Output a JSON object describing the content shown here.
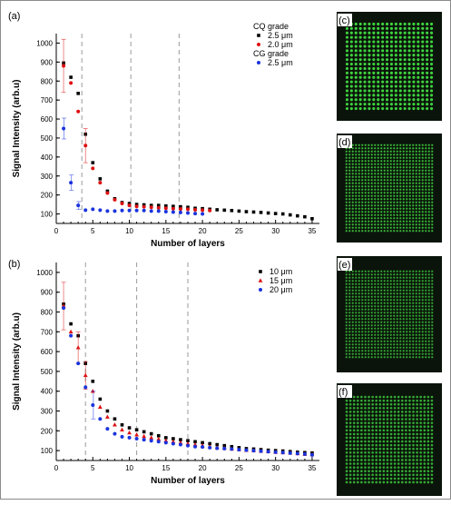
{
  "chart_data": [
    {
      "type": "scatter",
      "panel_label": "(a)",
      "xlabel": "Number of layers",
      "ylabel": "Signal Intensity (arb.u)",
      "xlim": [
        0,
        36
      ],
      "ylim": [
        50,
        1050
      ],
      "xticks": [
        0,
        5,
        10,
        15,
        20,
        25,
        30,
        35
      ],
      "yticks": [
        100,
        200,
        300,
        400,
        500,
        600,
        700,
        800,
        900,
        1000
      ],
      "vlines": [
        3.5,
        10.2,
        16.8
      ],
      "legend_groups": [
        {
          "header": "CQ grade",
          "series": [
            0,
            1
          ]
        },
        {
          "header": "CG grade",
          "series": [
            2
          ]
        }
      ],
      "legend_position": "top-right",
      "series": [
        {
          "name": "2.5 μm",
          "color": "#000000",
          "marker": "square",
          "x": [
            1,
            2,
            3,
            4,
            5,
            6,
            7,
            8,
            9,
            10,
            11,
            12,
            13,
            14,
            15,
            16,
            17,
            18,
            19,
            20,
            21,
            22,
            23,
            24,
            25,
            26,
            27,
            28,
            29,
            30,
            31,
            32,
            33,
            34,
            35
          ],
          "y": [
            895,
            820,
            735,
            520,
            370,
            285,
            220,
            180,
            160,
            155,
            150,
            148,
            145,
            145,
            142,
            140,
            138,
            135,
            130,
            128,
            125,
            122,
            120,
            118,
            115,
            112,
            110,
            108,
            105,
            102,
            100,
            95,
            90,
            85,
            75
          ]
        },
        {
          "name": "2.0 μm",
          "color": "#dd1111",
          "marker": "circle",
          "x": [
            1,
            2,
            3,
            4,
            5,
            6,
            7,
            8,
            9,
            10,
            11,
            12,
            13,
            14,
            15,
            16,
            17,
            18,
            19,
            20,
            21
          ],
          "y": [
            880,
            790,
            640,
            460,
            340,
            265,
            210,
            175,
            155,
            145,
            140,
            138,
            135,
            132,
            130,
            128,
            126,
            125,
            122,
            120,
            118
          ],
          "err": [
            140,
            0,
            0,
            90,
            0,
            0,
            0,
            0,
            0,
            0,
            0,
            0,
            0,
            0,
            0,
            0,
            0,
            0,
            0,
            0,
            0
          ]
        },
        {
          "name": "2.5 μm",
          "color": "#1a33dd",
          "marker": "circle",
          "x": [
            1,
            2,
            3,
            4,
            5,
            6,
            7,
            8,
            9,
            10,
            11,
            12,
            13,
            14,
            15,
            16,
            17,
            18,
            19,
            20
          ],
          "y": [
            550,
            265,
            145,
            120,
            125,
            120,
            115,
            115,
            118,
            118,
            118,
            118,
            115,
            115,
            112,
            110,
            108,
            105,
            102,
            100
          ],
          "err": [
            55,
            40,
            20,
            0,
            0,
            0,
            0,
            0,
            0,
            0,
            0,
            0,
            0,
            0,
            0,
            0,
            0,
            0,
            0,
            0
          ]
        }
      ]
    },
    {
      "type": "scatter",
      "panel_label": "(b)",
      "xlabel": "Number of layers",
      "ylabel": "Signal Intensity (arb.u)",
      "xlim": [
        0,
        36
      ],
      "ylim": [
        50,
        1050
      ],
      "xticks": [
        0,
        5,
        10,
        15,
        20,
        25,
        30,
        35
      ],
      "yticks": [
        100,
        200,
        300,
        400,
        500,
        600,
        700,
        800,
        900,
        1000
      ],
      "vlines": [
        4,
        11,
        18
      ],
      "legend_groups": [
        {
          "header": "",
          "series": [
            0,
            1,
            2
          ]
        }
      ],
      "legend_position": "top-right",
      "series": [
        {
          "name": "10 μm",
          "color": "#000000",
          "marker": "square",
          "x": [
            1,
            2,
            3,
            4,
            5,
            6,
            7,
            8,
            9,
            10,
            11,
            12,
            13,
            14,
            15,
            16,
            17,
            18,
            19,
            20,
            21,
            22,
            23,
            24,
            25,
            26,
            27,
            28,
            29,
            30,
            31,
            32,
            33,
            34,
            35
          ],
          "y": [
            840,
            740,
            680,
            540,
            450,
            360,
            300,
            260,
            230,
            215,
            205,
            195,
            185,
            175,
            165,
            160,
            155,
            150,
            145,
            140,
            135,
            130,
            125,
            120,
            115,
            110,
            108,
            105,
            102,
            100,
            98,
            95,
            92,
            90,
            88
          ]
        },
        {
          "name": "15 μm",
          "color": "#dd1111",
          "marker": "triangle",
          "x": [
            1,
            2,
            3,
            4,
            5,
            6,
            7,
            8,
            9,
            10,
            11,
            12,
            13,
            14,
            15,
            16,
            17,
            18,
            19,
            20,
            21,
            22,
            23,
            24,
            25,
            26,
            27,
            28,
            29,
            30,
            31,
            32,
            33,
            34,
            35
          ],
          "y": [
            830,
            700,
            620,
            480,
            400,
            320,
            270,
            230,
            205,
            190,
            180,
            172,
            165,
            158,
            150,
            145,
            140,
            135,
            130,
            125,
            120,
            115,
            112,
            108,
            105,
            102,
            100,
            97,
            95,
            92,
            90,
            88,
            85,
            82,
            80
          ],
          "err": [
            120,
            0,
            80,
            70,
            0,
            0,
            0,
            0,
            0,
            0,
            0,
            0,
            0,
            0,
            0,
            0,
            0,
            0,
            0,
            0,
            0,
            0,
            0,
            0,
            0,
            0,
            0,
            0,
            0,
            0,
            0,
            0,
            0,
            0,
            0
          ]
        },
        {
          "name": "20 μm",
          "color": "#1a33dd",
          "marker": "circle",
          "x": [
            1,
            2,
            3,
            4,
            5,
            6,
            7,
            8,
            9,
            10,
            11,
            12,
            13,
            14,
            15,
            16,
            17,
            18,
            19,
            20,
            21,
            22,
            23,
            24,
            25,
            26,
            27,
            28,
            29,
            30,
            31,
            32,
            33,
            34,
            35
          ],
          "y": [
            820,
            680,
            540,
            420,
            330,
            260,
            210,
            185,
            170,
            165,
            160,
            155,
            150,
            145,
            140,
            135,
            130,
            125,
            120,
            118,
            115,
            112,
            110,
            108,
            105,
            102,
            100,
            97,
            95,
            92,
            90,
            87,
            85,
            82,
            78
          ],
          "err": [
            0,
            0,
            0,
            0,
            70,
            0,
            0,
            0,
            0,
            0,
            0,
            0,
            0,
            0,
            0,
            0,
            0,
            0,
            0,
            0,
            0,
            0,
            0,
            0,
            0,
            0,
            0,
            0,
            0,
            0,
            0,
            0,
            0,
            0,
            0
          ]
        }
      ]
    }
  ],
  "images": [
    {
      "label": "(c)",
      "grid": 20,
      "brightness": 1.0
    },
    {
      "label": "(d)",
      "grid": 28,
      "brightness": 0.85
    },
    {
      "label": "(e)",
      "grid": 28,
      "brightness": 0.75
    },
    {
      "label": "(f)",
      "grid": 24,
      "brightness": 0.8
    }
  ],
  "colors": {
    "dashed_line": "#9a9a9a",
    "image_bg": "#0b140b",
    "spot": "#3fd33f"
  }
}
